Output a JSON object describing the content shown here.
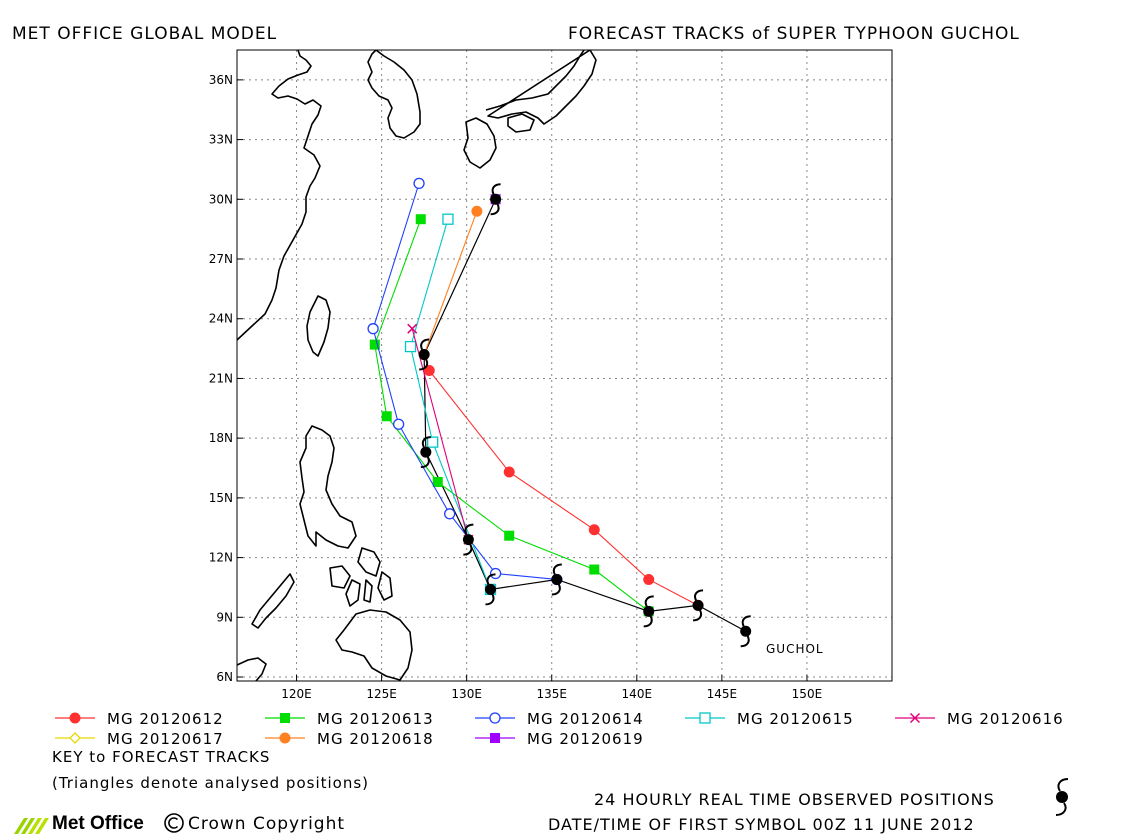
{
  "header": {
    "left_title": "MET OFFICE GLOBAL MODEL",
    "right_title": "FORECAST TRACKS of SUPER TYPHOON GUCHOL"
  },
  "map": {
    "lon_range": [
      116.5,
      155
    ],
    "lat_range": [
      5.8,
      37.5
    ],
    "lon_ticks": [
      "120E",
      "125E",
      "130E",
      "135E",
      "140E",
      "145E",
      "150E"
    ],
    "lat_ticks": [
      "36N",
      "33N",
      "30N",
      "27N",
      "24N",
      "21N",
      "18N",
      "15N",
      "12N",
      "9N",
      "6N"
    ],
    "grid": true
  },
  "storm_label": "GUCHOL",
  "observed_track": [
    [
      146.4,
      8.3
    ],
    [
      143.6,
      9.6
    ],
    [
      140.7,
      9.3
    ],
    [
      135.3,
      10.9
    ],
    [
      131.4,
      10.4
    ],
    [
      130.1,
      12.9
    ],
    [
      127.6,
      17.3
    ],
    [
      127.5,
      22.2
    ],
    [
      131.7,
      30.0
    ]
  ],
  "tracks": [
    {
      "label": "MG 20120612",
      "color": "#ff3030",
      "marker": "filled-circle",
      "points": [
        [
          143.6,
          9.6
        ],
        [
          140.7,
          10.9
        ],
        [
          137.5,
          13.4
        ],
        [
          132.5,
          16.3
        ],
        [
          127.8,
          21.4
        ]
      ]
    },
    {
      "label": "MG 20120613",
      "color": "#00dd00",
      "marker": "filled-square",
      "points": [
        [
          140.7,
          9.3
        ],
        [
          137.5,
          11.4
        ],
        [
          132.5,
          13.1
        ],
        [
          128.3,
          15.8
        ],
        [
          125.3,
          19.1
        ],
        [
          124.6,
          22.7
        ],
        [
          127.3,
          29.0
        ]
      ]
    },
    {
      "label": "MG 20120614",
      "color": "#2040ff",
      "marker": "open-circle",
      "points": [
        [
          135.3,
          10.9
        ],
        [
          131.7,
          11.2
        ],
        [
          129.0,
          14.2
        ],
        [
          126.0,
          18.7
        ],
        [
          124.5,
          23.5
        ],
        [
          127.2,
          30.8
        ]
      ]
    },
    {
      "label": "MG 20120615",
      "color": "#00c8c8",
      "marker": "open-square",
      "points": [
        [
          131.4,
          10.4
        ],
        [
          128.0,
          17.8
        ],
        [
          126.7,
          22.6
        ],
        [
          128.9,
          29.0
        ]
      ]
    },
    {
      "label": "MG 20120616",
      "color": "#e0007a",
      "marker": "cross",
      "points": [
        [
          130.1,
          12.9
        ],
        [
          126.8,
          23.5
        ]
      ]
    },
    {
      "label": "MG 20120617",
      "color": "#e8d800",
      "marker": "open-diamond",
      "points": [
        [
          127.6,
          17.3
        ]
      ]
    },
    {
      "label": "MG 20120618",
      "color": "#ff8020",
      "marker": "filled-circle",
      "points": [
        [
          127.5,
          22.2
        ],
        [
          130.6,
          29.4
        ]
      ]
    },
    {
      "label": "MG 20120619",
      "color": "#a000ff",
      "marker": "filled-square",
      "points": [
        [
          131.7,
          30.0
        ]
      ]
    }
  ],
  "key_title": "KEY to FORECAST TRACKS",
  "key_note": "(Triangles denote analysed positions)",
  "footer": {
    "observed_note": "24 HOURLY REAL TIME OBSERVED POSITIONS",
    "first_symbol_note": "DATE/TIME OF FIRST SYMBOL 00Z 11 JUNE 2012",
    "logo_name": "Met Office",
    "copyright": "Crown Copyright"
  }
}
